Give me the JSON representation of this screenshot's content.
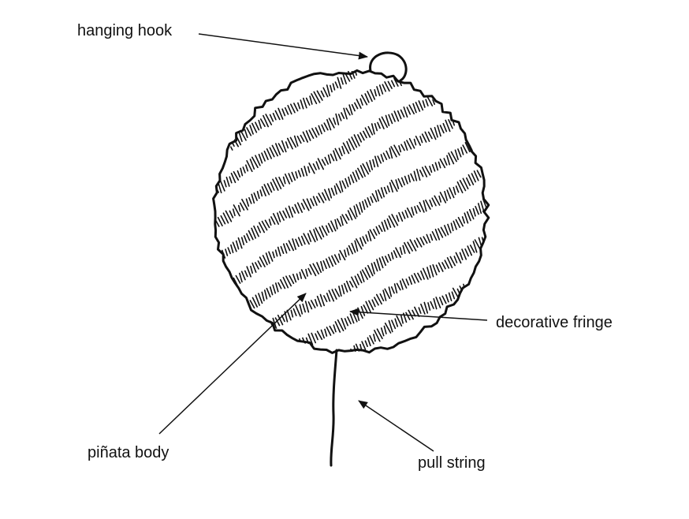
{
  "labels": {
    "hook": "hanging hook",
    "fringe": "decorative fringe",
    "body": "piñata body",
    "string": "pull string"
  },
  "colors": {
    "ink": "#111111",
    "background": "#ffffff"
  }
}
